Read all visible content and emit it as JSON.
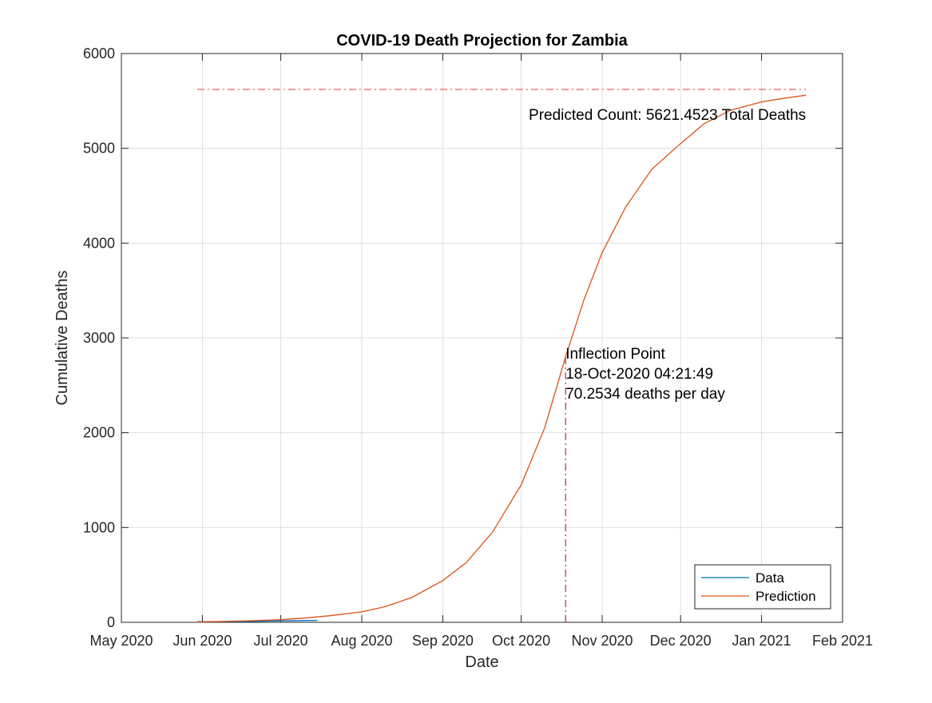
{
  "chart_data": {
    "type": "line",
    "title": "COVID-19 Death Projection for Zambia",
    "xlabel": "Date",
    "ylabel": "Cumulative Deaths",
    "xlim": [
      "2020-05-01",
      "2021-02-01"
    ],
    "ylim": [
      0,
      6000
    ],
    "grid": true,
    "x_ticks": [
      {
        "date": "2020-05-01",
        "label": "May 2020"
      },
      {
        "date": "2020-06-01",
        "label": "Jun 2020"
      },
      {
        "date": "2020-07-01",
        "label": "Jul 2020"
      },
      {
        "date": "2020-08-01",
        "label": "Aug 2020"
      },
      {
        "date": "2020-09-01",
        "label": "Sep 2020"
      },
      {
        "date": "2020-10-01",
        "label": "Oct 2020"
      },
      {
        "date": "2020-11-01",
        "label": "Nov 2020"
      },
      {
        "date": "2020-12-01",
        "label": "Dec 2020"
      },
      {
        "date": "2021-01-01",
        "label": "Jan 2021"
      },
      {
        "date": "2021-02-01",
        "label": "Feb 2021"
      }
    ],
    "y_ticks": [
      0,
      1000,
      2000,
      3000,
      4000,
      5000,
      6000
    ],
    "legend": {
      "location": "bottom-right",
      "entries": [
        {
          "name": "Data",
          "color": "#0072BD"
        },
        {
          "name": "Prediction",
          "color": "#D95319"
        }
      ]
    },
    "series": [
      {
        "name": "Data",
        "color": "#0072BD",
        "x": [
          "2020-05-30",
          "2020-06-15",
          "2020-07-01",
          "2020-07-15"
        ],
        "y": [
          7,
          8,
          15,
          20
        ]
      },
      {
        "name": "Prediction",
        "color": "#D95319",
        "x": [
          "2020-05-30",
          "2020-06-10",
          "2020-06-20",
          "2020-07-01",
          "2020-07-10",
          "2020-07-20",
          "2020-08-01",
          "2020-08-10",
          "2020-08-20",
          "2020-09-01",
          "2020-09-10",
          "2020-09-20",
          "2020-10-01",
          "2020-10-10",
          "2020-10-18",
          "2020-10-25",
          "2020-11-01",
          "2020-11-10",
          "2020-11-20",
          "2020-12-01",
          "2020-12-10",
          "2020-12-20",
          "2021-01-01",
          "2021-01-10",
          "2021-01-18"
        ],
        "y": [
          3,
          10,
          17,
          28,
          45,
          70,
          110,
          165,
          260,
          440,
          630,
          950,
          1450,
          2050,
          2800,
          3400,
          3900,
          4380,
          4780,
          5050,
          5260,
          5400,
          5490,
          5530,
          5560
        ]
      }
    ],
    "reference_lines": [
      {
        "type": "horizontal",
        "y": 5621.4523,
        "x_start": "2020-05-30",
        "x_end": "2021-01-18",
        "style": "dashdot",
        "color": "#EE6E6E"
      },
      {
        "type": "vertical",
        "x": "2020-10-18",
        "y_start": 0,
        "y_end": 2800,
        "style": "dashdot",
        "color": "#B0303A"
      }
    ],
    "annotations": [
      {
        "id": "predicted-count",
        "text": "Predicted Count: 5621.4523 Total Deaths",
        "x": "2021-01-18",
        "y": 5420,
        "align": "right"
      },
      {
        "id": "inflection",
        "lines": [
          "Inflection Point",
          "18-Oct-2020 04:21:49",
          "70.2534 deaths per day"
        ],
        "x": "2020-10-18",
        "y": 2900,
        "align": "left"
      }
    ]
  }
}
